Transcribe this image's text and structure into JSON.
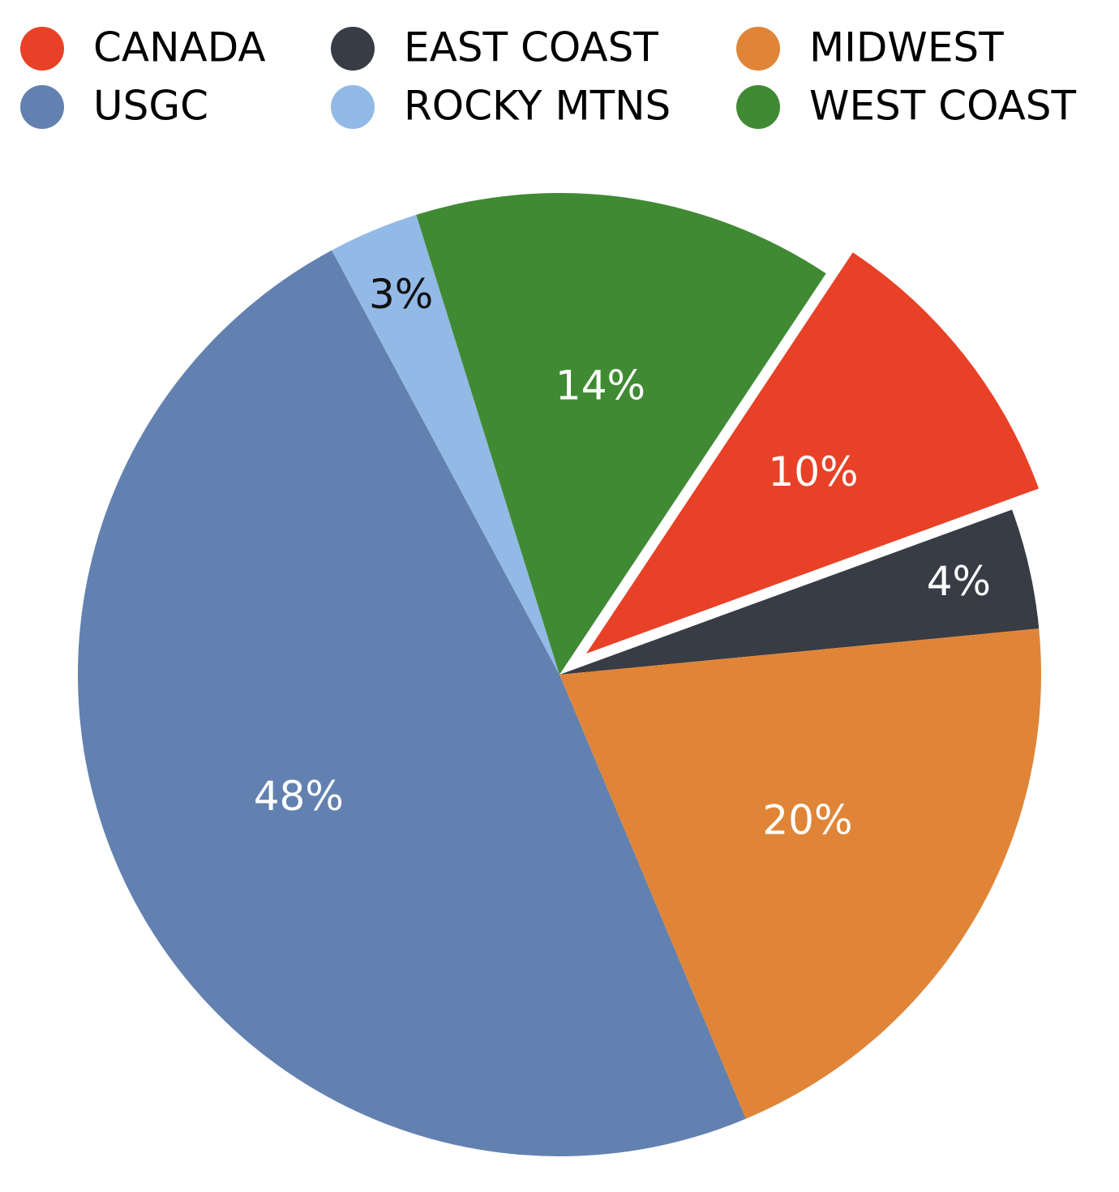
{
  "chart_data": {
    "type": "pie",
    "categories": [
      "CANADA",
      "EAST COAST",
      "MIDWEST",
      "USGC",
      "ROCKY MTNS",
      "WEST COAST"
    ],
    "values": [
      10,
      4,
      20,
      48,
      3,
      14
    ],
    "value_labels": [
      "10%",
      "4%",
      "20%",
      "48%",
      "3%",
      "14%"
    ],
    "colors": [
      "#e84127",
      "#373c45",
      "#e08537",
      "#6281b0",
      "#93b9e6",
      "#408a34"
    ],
    "legend": "top"
  }
}
